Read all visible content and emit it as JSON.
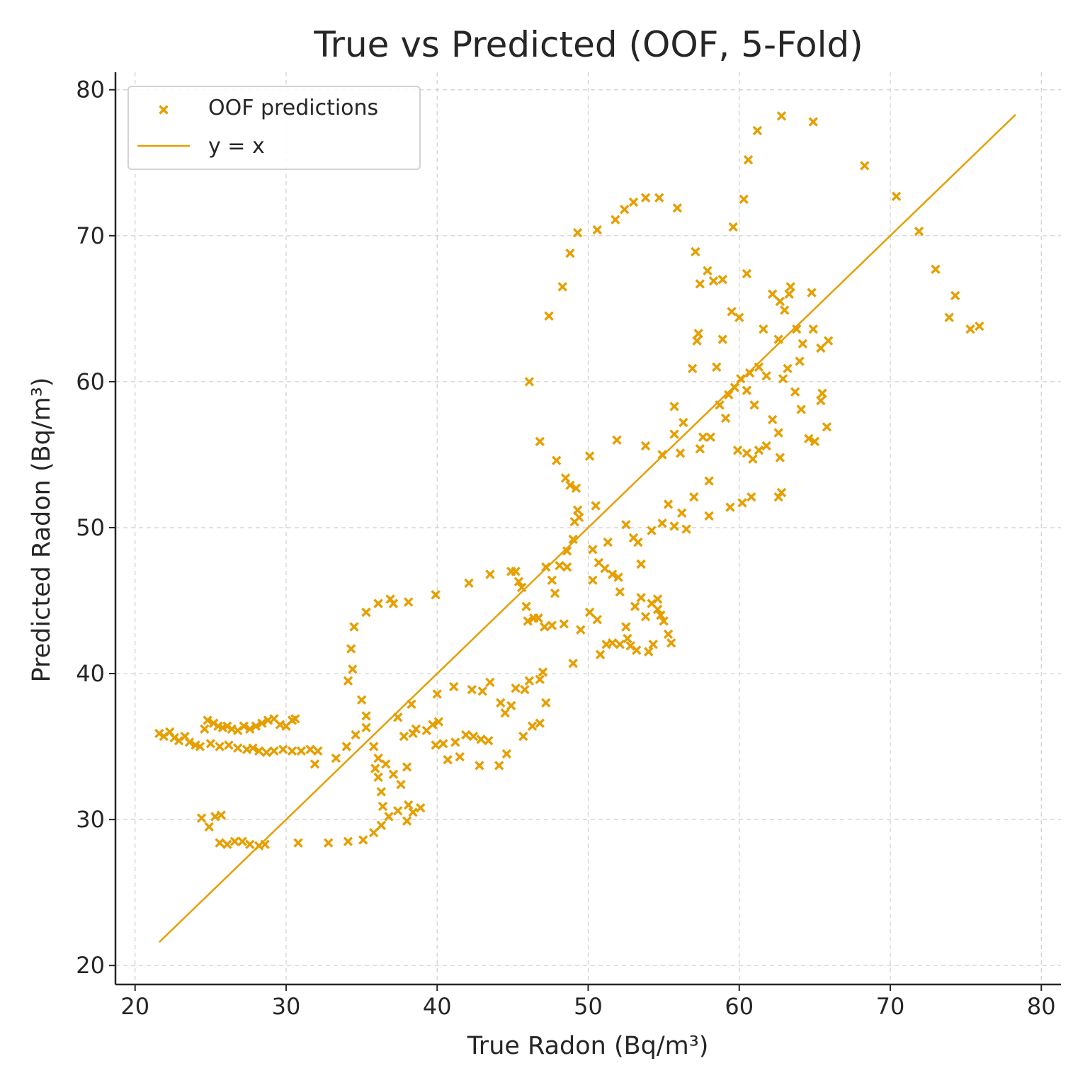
{
  "chart_data": {
    "type": "scatter",
    "title": "True vs Predicted (OOF, 5-Fold)",
    "xlabel": "True Radon (Bq/m³)",
    "ylabel": "Predicted Radon (Bq/m³)",
    "xlim": [
      18.7,
      81.3
    ],
    "ylim": [
      18.7,
      81.2
    ],
    "xticks": [
      20,
      30,
      40,
      50,
      60,
      70,
      80
    ],
    "yticks": [
      20,
      30,
      40,
      50,
      60,
      70,
      80
    ],
    "grid": true,
    "legend": {
      "placement": "top-left",
      "entries": [
        "OOF predictions",
        "y = x"
      ]
    },
    "colors": {
      "marker": "#E69F00",
      "line": "#E69F00",
      "text": "#262626",
      "grid": "#cfcfcf"
    },
    "series": [
      {
        "name": "OOF predictions",
        "marker": "x",
        "points": [
          [
            21.6,
            35.9
          ],
          [
            21.9,
            35.7
          ],
          [
            22.3,
            36.0
          ],
          [
            22.6,
            35.6
          ],
          [
            22.9,
            35.4
          ],
          [
            23.3,
            35.7
          ],
          [
            23.6,
            35.3
          ],
          [
            24.0,
            35.1
          ],
          [
            24.3,
            35.0
          ],
          [
            24.6,
            36.2
          ],
          [
            24.8,
            36.8
          ],
          [
            25.2,
            36.6
          ],
          [
            25.5,
            36.4
          ],
          [
            25.8,
            36.3
          ],
          [
            26.1,
            36.4
          ],
          [
            26.4,
            36.2
          ],
          [
            26.8,
            36.1
          ],
          [
            27.2,
            36.4
          ],
          [
            27.6,
            36.2
          ],
          [
            28.0,
            36.4
          ],
          [
            28.4,
            36.6
          ],
          [
            28.8,
            36.8
          ],
          [
            29.2,
            36.9
          ],
          [
            29.6,
            36.5
          ],
          [
            30.0,
            36.4
          ],
          [
            30.4,
            36.8
          ],
          [
            30.6,
            36.9
          ],
          [
            25.0,
            35.2
          ],
          [
            25.6,
            35.0
          ],
          [
            26.2,
            35.1
          ],
          [
            26.8,
            34.9
          ],
          [
            27.4,
            34.8
          ],
          [
            27.8,
            34.9
          ],
          [
            28.2,
            34.7
          ],
          [
            28.7,
            34.6
          ],
          [
            29.2,
            34.7
          ],
          [
            29.8,
            34.8
          ],
          [
            30.4,
            34.7
          ],
          [
            31.0,
            34.7
          ],
          [
            31.6,
            34.8
          ],
          [
            32.1,
            34.7
          ],
          [
            31.9,
            33.8
          ],
          [
            24.4,
            30.1
          ],
          [
            24.9,
            29.5
          ],
          [
            25.3,
            30.2
          ],
          [
            25.7,
            30.3
          ],
          [
            25.6,
            28.4
          ],
          [
            26.1,
            28.3
          ],
          [
            26.6,
            28.5
          ],
          [
            27.1,
            28.5
          ],
          [
            27.6,
            28.3
          ],
          [
            28.2,
            28.2
          ],
          [
            28.6,
            28.3
          ],
          [
            30.8,
            28.4
          ],
          [
            32.8,
            28.4
          ],
          [
            34.1,
            28.5
          ],
          [
            35.1,
            28.6
          ],
          [
            35.8,
            29.1
          ],
          [
            36.3,
            29.6
          ],
          [
            36.8,
            30.2
          ],
          [
            37.4,
            30.6
          ],
          [
            38.0,
            29.9
          ],
          [
            38.4,
            30.5
          ],
          [
            38.9,
            30.8
          ],
          [
            38.1,
            31.0
          ],
          [
            33.3,
            34.2
          ],
          [
            34.0,
            35.0
          ],
          [
            34.6,
            35.8
          ],
          [
            35.3,
            36.3
          ],
          [
            35.8,
            35.0
          ],
          [
            36.1,
            34.2
          ],
          [
            36.6,
            33.8
          ],
          [
            37.1,
            33.1
          ],
          [
            37.6,
            32.4
          ],
          [
            38.0,
            33.6
          ],
          [
            36.4,
            30.9
          ],
          [
            36.3,
            31.9
          ],
          [
            36.1,
            32.9
          ],
          [
            35.9,
            33.5
          ],
          [
            34.1,
            39.5
          ],
          [
            34.4,
            40.3
          ],
          [
            34.3,
            41.7
          ],
          [
            34.5,
            43.2
          ],
          [
            35.3,
            44.2
          ],
          [
            36.1,
            44.8
          ],
          [
            37.1,
            44.8
          ],
          [
            38.1,
            44.9
          ],
          [
            39.9,
            45.4
          ],
          [
            36.9,
            45.1
          ],
          [
            35.0,
            38.2
          ],
          [
            35.3,
            37.1
          ],
          [
            37.4,
            37.0
          ],
          [
            38.3,
            37.9
          ],
          [
            38.6,
            36.2
          ],
          [
            37.8,
            35.7
          ],
          [
            38.4,
            35.9
          ],
          [
            39.3,
            36.1
          ],
          [
            39.7,
            36.5
          ],
          [
            40.1,
            36.7
          ],
          [
            39.9,
            35.1
          ],
          [
            40.4,
            35.2
          ],
          [
            41.2,
            35.3
          ],
          [
            41.9,
            35.8
          ],
          [
            42.4,
            35.7
          ],
          [
            42.9,
            35.5
          ],
          [
            43.4,
            35.4
          ],
          [
            40.7,
            34.1
          ],
          [
            41.5,
            34.3
          ],
          [
            42.8,
            33.7
          ],
          [
            44.1,
            33.7
          ],
          [
            44.6,
            34.5
          ],
          [
            40.0,
            38.6
          ],
          [
            41.1,
            39.1
          ],
          [
            42.3,
            38.9
          ],
          [
            43.0,
            38.8
          ],
          [
            43.5,
            39.4
          ],
          [
            44.2,
            38.0
          ],
          [
            44.5,
            37.3
          ],
          [
            44.9,
            37.8
          ],
          [
            45.2,
            39.0
          ],
          [
            45.8,
            38.9
          ],
          [
            46.1,
            39.5
          ],
          [
            45.7,
            35.7
          ],
          [
            46.3,
            36.4
          ],
          [
            46.8,
            36.6
          ],
          [
            47.2,
            38.0
          ],
          [
            46.8,
            39.6
          ],
          [
            47.0,
            40.1
          ],
          [
            42.1,
            46.2
          ],
          [
            43.5,
            46.8
          ],
          [
            44.9,
            47.0
          ],
          [
            45.2,
            47.0
          ],
          [
            45.4,
            46.3
          ],
          [
            45.6,
            45.9
          ],
          [
            45.9,
            44.6
          ],
          [
            46.4,
            43.8
          ],
          [
            47.2,
            47.3
          ],
          [
            47.6,
            46.4
          ],
          [
            47.8,
            45.5
          ],
          [
            48.1,
            47.4
          ],
          [
            48.6,
            48.4
          ],
          [
            49.0,
            49.2
          ],
          [
            49.1,
            50.4
          ],
          [
            49.3,
            51.2
          ],
          [
            49.2,
            52.7
          ],
          [
            48.8,
            52.9
          ],
          [
            48.5,
            53.4
          ],
          [
            49.4,
            50.7
          ],
          [
            46.0,
            43.6
          ],
          [
            46.7,
            43.8
          ],
          [
            47.1,
            43.2
          ],
          [
            47.6,
            43.3
          ],
          [
            48.4,
            43.4
          ],
          [
            49.0,
            40.7
          ],
          [
            49.5,
            43.0
          ],
          [
            50.1,
            44.2
          ],
          [
            50.6,
            43.7
          ],
          [
            50.8,
            41.3
          ],
          [
            51.2,
            42.0
          ],
          [
            51.6,
            42.1
          ],
          [
            52.1,
            42.0
          ],
          [
            52.8,
            41.9
          ],
          [
            53.2,
            41.6
          ],
          [
            50.3,
            46.4
          ],
          [
            50.7,
            47.6
          ],
          [
            51.1,
            47.2
          ],
          [
            51.6,
            46.8
          ],
          [
            52.0,
            46.6
          ],
          [
            52.5,
            43.2
          ],
          [
            52.6,
            42.4
          ],
          [
            53.1,
            44.6
          ],
          [
            53.5,
            45.2
          ],
          [
            53.8,
            43.9
          ],
          [
            54.2,
            44.8
          ],
          [
            54.6,
            44.4
          ],
          [
            54.8,
            44.0
          ],
          [
            55.0,
            43.6
          ],
          [
            55.3,
            42.7
          ],
          [
            55.5,
            42.1
          ],
          [
            54.0,
            41.5
          ],
          [
            54.3,
            42.0
          ],
          [
            54.6,
            45.1
          ],
          [
            50.5,
            51.5
          ],
          [
            51.3,
            49.0
          ],
          [
            52.5,
            50.2
          ],
          [
            53.0,
            49.3
          ],
          [
            53.5,
            47.5
          ],
          [
            54.2,
            49.8
          ],
          [
            54.9,
            50.3
          ],
          [
            55.3,
            51.6
          ],
          [
            55.7,
            50.1
          ],
          [
            56.2,
            51.0
          ],
          [
            56.5,
            49.9
          ],
          [
            57.0,
            52.1
          ],
          [
            58.0,
            50.8
          ],
          [
            59.4,
            51.4
          ],
          [
            60.2,
            51.7
          ],
          [
            60.8,
            52.1
          ],
          [
            62.6,
            52.1
          ],
          [
            62.8,
            52.4
          ],
          [
            47.9,
            54.6
          ],
          [
            50.1,
            54.9
          ],
          [
            51.9,
            56.0
          ],
          [
            53.8,
            55.6
          ],
          [
            54.9,
            55.0
          ],
          [
            55.7,
            56.4
          ],
          [
            56.3,
            57.2
          ],
          [
            57.4,
            55.4
          ],
          [
            57.6,
            56.2
          ],
          [
            58.1,
            56.2
          ],
          [
            58.7,
            58.4
          ],
          [
            59.3,
            59.1
          ],
          [
            59.7,
            59.6
          ],
          [
            60.1,
            60.2
          ],
          [
            60.7,
            60.6
          ],
          [
            61.3,
            61.0
          ],
          [
            61.8,
            60.4
          ],
          [
            47.4,
            64.5
          ],
          [
            48.3,
            66.5
          ],
          [
            48.8,
            68.8
          ],
          [
            49.3,
            70.2
          ],
          [
            50.6,
            70.4
          ],
          [
            51.8,
            71.1
          ],
          [
            52.4,
            71.8
          ],
          [
            53.0,
            72.3
          ],
          [
            53.8,
            72.6
          ],
          [
            54.7,
            72.6
          ],
          [
            55.9,
            71.9
          ],
          [
            57.1,
            68.9
          ],
          [
            57.4,
            66.7
          ],
          [
            57.9,
            67.6
          ],
          [
            58.3,
            66.9
          ],
          [
            58.9,
            67.0
          ],
          [
            59.6,
            70.6
          ],
          [
            60.3,
            72.5
          ],
          [
            60.6,
            75.2
          ],
          [
            61.2,
            77.2
          ],
          [
            61.6,
            63.6
          ],
          [
            62.2,
            66.0
          ],
          [
            62.6,
            62.9
          ],
          [
            63.0,
            64.9
          ],
          [
            63.3,
            66.0
          ],
          [
            63.8,
            63.6
          ],
          [
            64.2,
            62.6
          ],
          [
            64.8,
            66.1
          ],
          [
            65.4,
            62.3
          ],
          [
            65.9,
            62.8
          ],
          [
            55.7,
            58.3
          ],
          [
            56.9,
            60.9
          ],
          [
            57.2,
            62.8
          ],
          [
            58.5,
            61.0
          ],
          [
            58.9,
            62.9
          ],
          [
            59.5,
            64.8
          ],
          [
            60.0,
            64.4
          ],
          [
            59.9,
            55.3
          ],
          [
            60.5,
            55.1
          ],
          [
            60.9,
            54.7
          ],
          [
            61.3,
            55.3
          ],
          [
            61.8,
            55.6
          ],
          [
            62.2,
            57.4
          ],
          [
            62.6,
            56.5
          ],
          [
            62.9,
            60.2
          ],
          [
            63.2,
            60.9
          ],
          [
            63.7,
            59.3
          ],
          [
            64.1,
            58.1
          ],
          [
            64.6,
            56.1
          ],
          [
            65.0,
            55.9
          ],
          [
            65.4,
            58.7
          ],
          [
            65.8,
            56.9
          ],
          [
            46.8,
            55.9
          ],
          [
            48.6,
            47.3
          ],
          [
            50.3,
            48.5
          ],
          [
            52.1,
            45.6
          ],
          [
            53.3,
            49.0
          ],
          [
            56.1,
            55.1
          ],
          [
            58.0,
            53.2
          ],
          [
            59.1,
            57.5
          ],
          [
            60.5,
            59.4
          ],
          [
            61.0,
            58.4
          ],
          [
            62.7,
            54.8
          ],
          [
            64.0,
            61.4
          ],
          [
            65.5,
            59.2
          ],
          [
            46.1,
            60.0
          ],
          [
            57.3,
            63.3
          ],
          [
            60.5,
            67.4
          ],
          [
            62.7,
            65.5
          ],
          [
            63.4,
            66.5
          ],
          [
            64.9,
            63.6
          ],
          [
            62.8,
            78.2
          ],
          [
            64.9,
            77.8
          ],
          [
            68.3,
            74.8
          ],
          [
            70.4,
            72.7
          ],
          [
            71.9,
            70.3
          ],
          [
            73.0,
            67.7
          ],
          [
            73.9,
            64.4
          ],
          [
            74.3,
            65.9
          ],
          [
            75.3,
            63.6
          ],
          [
            75.9,
            63.8
          ]
        ]
      },
      {
        "name": "y = x",
        "line": [
          [
            21.6,
            21.6
          ],
          [
            78.3,
            78.3
          ]
        ]
      }
    ]
  }
}
